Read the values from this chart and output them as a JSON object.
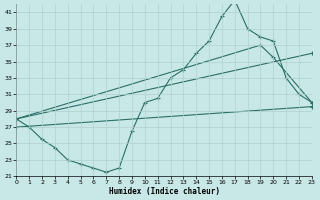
{
  "xlabel": "Humidex (Indice chaleur)",
  "bg_color": "#c8e8e8",
  "line_color": "#2a6e65",
  "grid_color": "#b0d0cc",
  "xlim": [
    0,
    23
  ],
  "ylim": [
    21,
    42
  ],
  "yticks": [
    21,
    23,
    25,
    27,
    29,
    31,
    33,
    35,
    37,
    39,
    41
  ],
  "xticks": [
    0,
    1,
    2,
    3,
    4,
    5,
    6,
    7,
    8,
    9,
    10,
    11,
    12,
    13,
    14,
    15,
    16,
    17,
    18,
    19,
    20,
    21,
    22,
    23
  ],
  "line1_x": [
    0,
    1,
    2,
    3,
    4,
    5,
    6,
    7,
    8,
    9,
    10,
    11,
    12,
    13,
    14,
    15,
    16,
    17,
    18,
    19,
    20,
    21,
    22,
    23
  ],
  "line1_y": [
    28,
    27,
    25.5,
    24.5,
    23,
    22.5,
    22,
    21.5,
    22,
    26.5,
    30,
    30.5,
    33,
    34,
    36,
    37.5,
    40.5,
    42.5,
    39,
    38,
    37.5,
    33,
    31,
    30
  ],
  "line2_x": [
    0,
    19,
    20,
    23
  ],
  "line2_y": [
    28,
    37,
    35.5,
    30
  ],
  "line3_x": [
    0,
    23
  ],
  "line3_y": [
    28,
    36
  ],
  "line4_x": [
    0,
    23
  ],
  "line4_y": [
    27,
    29.5
  ]
}
